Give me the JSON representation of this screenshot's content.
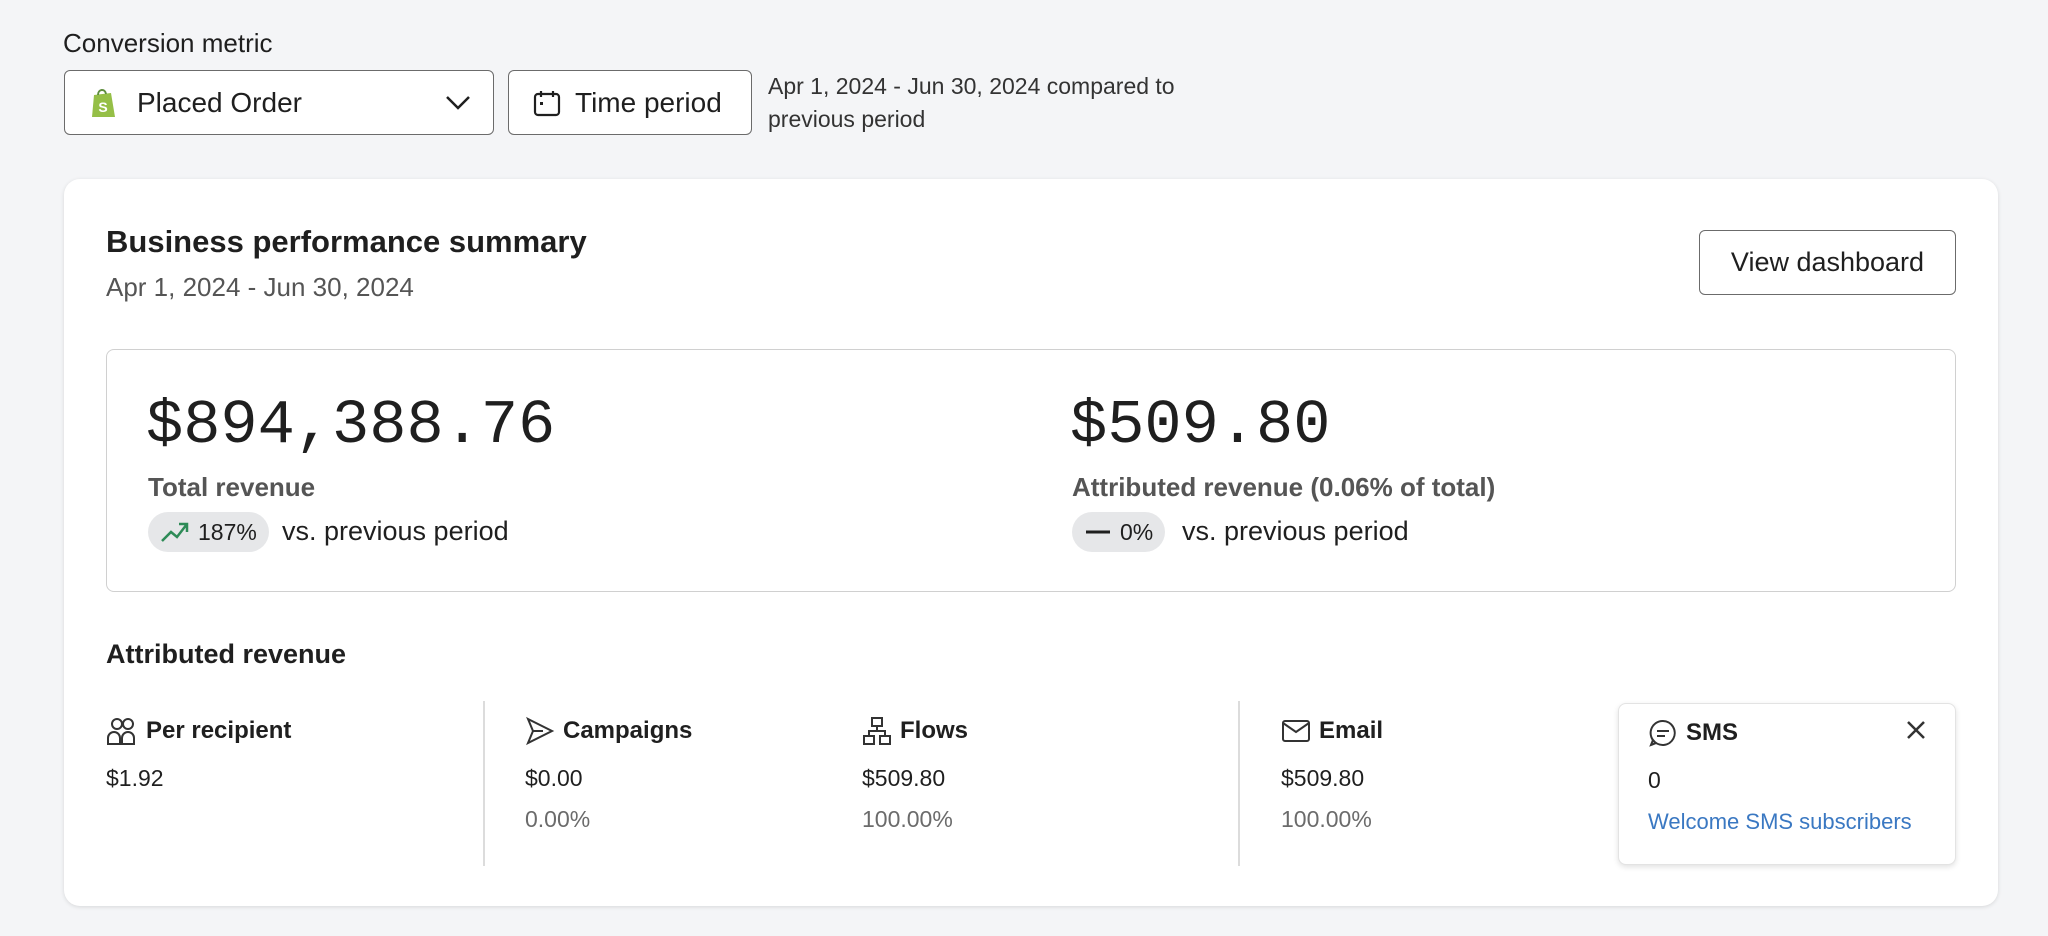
{
  "filters": {
    "label": "Conversion metric",
    "metric": "Placed Order",
    "time_button": "Time period",
    "period_text": "Apr 1, 2024 - Jun 30, 2024 compared to previous period"
  },
  "summary": {
    "title": "Business performance summary",
    "date": "Apr 1, 2024 - Jun 30, 2024",
    "button": "View dashboard",
    "kpis": [
      {
        "value": "$894,388.76",
        "label": "Total revenue",
        "change": "187%",
        "suffix": "vs. previous period"
      },
      {
        "value": "$509.80",
        "label": "Attributed revenue (0.06% of total)",
        "change": "0%",
        "suffix": "vs. previous period"
      }
    ]
  },
  "attributed": {
    "title": "Attributed revenue",
    "items": [
      {
        "name": "Per recipient",
        "value": "$1.92"
      },
      {
        "name": "Campaigns",
        "value": "$0.00",
        "percent": "0.00%"
      },
      {
        "name": "Flows",
        "value": "$509.80",
        "percent": "100.00%"
      },
      {
        "name": "Email",
        "value": "$509.80",
        "percent": "100.00%"
      }
    ],
    "sms": {
      "name": "SMS",
      "value": "0",
      "link": "Welcome SMS subscribers"
    }
  }
}
